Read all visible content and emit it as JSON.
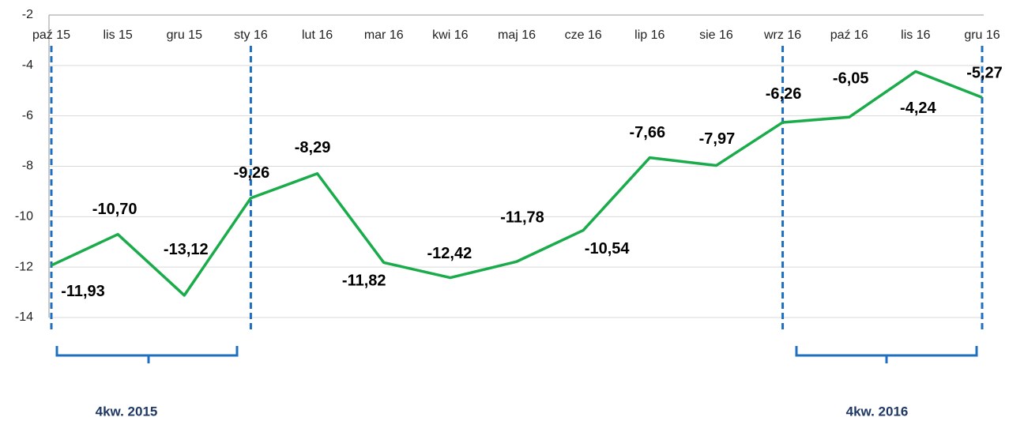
{
  "chart_data": {
    "type": "line",
    "categories": [
      "paź 15",
      "lis 15",
      "gru 15",
      "sty 16",
      "lut 16",
      "mar 16",
      "kwi 16",
      "maj 16",
      "cze 16",
      "lip 16",
      "sie 16",
      "wrz 16",
      "paź 16",
      "lis 16",
      "gru 16"
    ],
    "values": [
      -11.93,
      -10.7,
      -13.12,
      -9.26,
      -8.29,
      -11.82,
      -12.42,
      -11.78,
      -10.54,
      -7.66,
      -7.97,
      -6.26,
      -6.05,
      -4.24,
      -5.27
    ],
    "value_labels": [
      "-11,93",
      "-10,70",
      "-13,12",
      "-9,26",
      "-8,29",
      "-11,82",
      "-12,42",
      "-11,78",
      "-10,54",
      "-7,66",
      "-7,97",
      "-6,26",
      "-6,05",
      "-4,24",
      "-5,27"
    ],
    "color": "#1aab4b",
    "ylim": [
      -14,
      -2
    ],
    "yticks": [
      -2,
      -4,
      -6,
      -8,
      -10,
      -12,
      -14
    ],
    "grid": true,
    "annotations": [
      "4kw. 2015",
      "4kw. 2016"
    ]
  }
}
